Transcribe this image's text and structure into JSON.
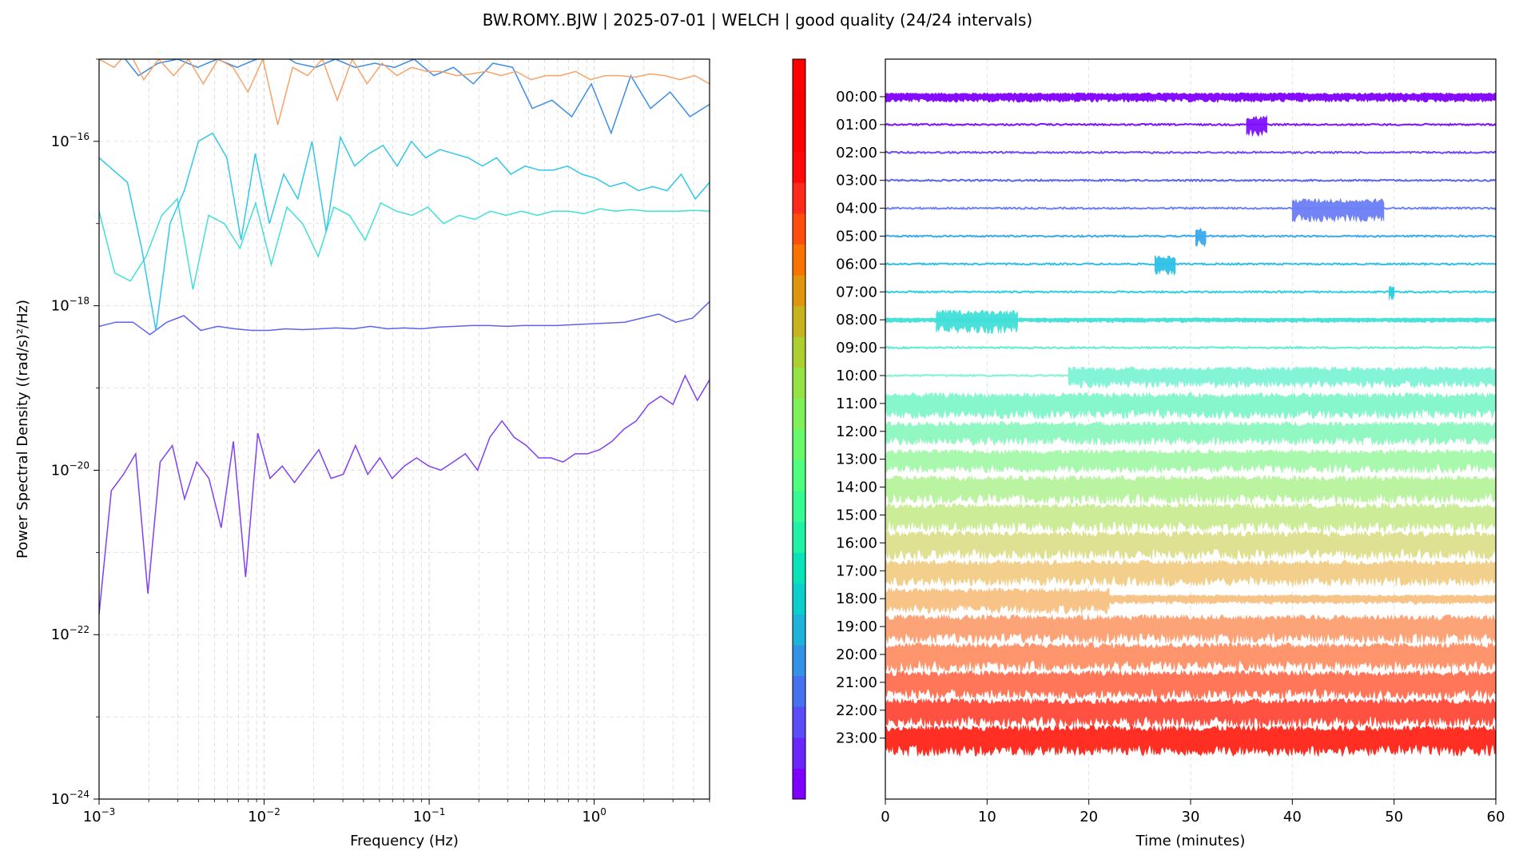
{
  "figure": {
    "title": "BW.ROMY..BJW | 2025-07-01 | WELCH | good quality (24/24 intervals)"
  },
  "chart_data": [
    {
      "type": "line",
      "panel": "psd",
      "xlabel": "Frequency (Hz)",
      "ylabel": "Power Spectral Density ((rad/s)²/Hz)",
      "xscale": "log",
      "yscale": "log",
      "xlim": [
        0.001,
        5
      ],
      "ylim": [
        1e-24,
        1e-15
      ],
      "grid": true,
      "x_ticks": [
        {
          "value": 0.001,
          "base": "10",
          "exp": "−3"
        },
        {
          "value": 0.01,
          "base": "10",
          "exp": "−2"
        },
        {
          "value": 0.1,
          "base": "10",
          "exp": "−1"
        },
        {
          "value": 1,
          "base": "10",
          "exp": "0"
        }
      ],
      "y_ticks": [
        {
          "value": 1e-16,
          "base": "10",
          "exp": "−16"
        },
        {
          "value": 1e-18,
          "base": "10",
          "exp": "−18"
        },
        {
          "value": 1e-20,
          "base": "10",
          "exp": "−20"
        },
        {
          "value": 1e-22,
          "base": "10",
          "exp": "−22"
        },
        {
          "value": 1e-24,
          "base": "10",
          "exp": "−24"
        }
      ],
      "series": [
        {
          "color": "#8040f5",
          "logy": [
            -21.75,
            -20.25,
            -20.05,
            -19.8,
            -21.5,
            -19.9,
            -19.7,
            -20.35,
            -19.9,
            -20.1,
            -20.7,
            -19.65,
            -21.3,
            -19.55,
            -20.1,
            -19.95,
            -20.15,
            -19.95,
            -19.75,
            -20.1,
            -20.05,
            -19.7,
            -20.05,
            -19.85,
            -20.1,
            -19.95,
            -19.85,
            -19.95,
            -20.0,
            -19.9,
            -19.8,
            -20.0,
            -19.6,
            -19.4,
            -19.6,
            -19.7,
            -19.85,
            -19.85,
            -19.9,
            -19.8,
            -19.8,
            -19.75,
            -19.65,
            -19.5,
            -19.4,
            -19.2,
            -19.1,
            -19.2,
            -18.85,
            -19.15,
            -18.9
          ]
        },
        {
          "color": "#5e62f0",
          "logy": [
            -18.25,
            -18.2,
            -18.2,
            -18.35,
            -18.2,
            -18.12,
            -18.3,
            -18.25,
            -18.28,
            -18.3,
            -18.3,
            -18.28,
            -18.29,
            -18.28,
            -18.27,
            -18.28,
            -18.25,
            -18.28,
            -18.27,
            -18.28,
            -18.26,
            -18.25,
            -18.24,
            -18.24,
            -18.25,
            -18.24,
            -18.24,
            -18.24,
            -18.23,
            -18.22,
            -18.21,
            -18.2,
            -18.15,
            -18.1,
            -18.2,
            -18.15,
            -17.95
          ]
        },
        {
          "color": "#40e0d8",
          "logy": [
            -16.85,
            -17.6,
            -17.7,
            -17.4,
            -16.9,
            -16.7,
            -17.8,
            -16.9,
            -17.0,
            -17.3,
            -16.75,
            -17.5,
            -16.8,
            -17.0,
            -17.4,
            -16.8,
            -16.9,
            -17.2,
            -16.75,
            -16.85,
            -16.9,
            -16.8,
            -17.0,
            -16.9,
            -16.95,
            -16.85,
            -16.9,
            -16.85,
            -16.9,
            -16.85,
            -16.85,
            -16.88,
            -16.82,
            -16.85,
            -16.83,
            -16.85,
            -16.85,
            -16.85,
            -16.84,
            -16.85
          ]
        },
        {
          "color": "#30c8e8",
          "logy": [
            -16.2,
            -16.35,
            -16.5,
            -17.3,
            -18.3,
            -17.0,
            -16.6,
            -16.0,
            -15.9,
            -16.2,
            -17.2,
            -16.15,
            -17.0,
            -16.4,
            -16.7,
            -16.0,
            -17.1,
            -15.95,
            -16.3,
            -16.15,
            -16.05,
            -16.3,
            -16.0,
            -16.2,
            -16.1,
            -16.15,
            -16.2,
            -16.3,
            -16.2,
            -16.4,
            -16.3,
            -16.35,
            -16.35,
            -16.3,
            -16.4,
            -16.45,
            -16.55,
            -16.5,
            -16.6,
            -16.55,
            -16.6,
            -16.4,
            -16.7,
            -16.5
          ]
        },
        {
          "color": "#3c8ee8",
          "logy": [
            -15.0,
            -14.9,
            -15.2,
            -15.05,
            -15.0,
            -15.1,
            -15.0,
            -15.1,
            -15.0,
            -14.9,
            -15.05,
            -15.1,
            -15.0,
            -15.1,
            -15.05,
            -15.1,
            -15.0,
            -15.2,
            -15.1,
            -15.3,
            -15.05,
            -15.1,
            -15.6,
            -15.5,
            -15.7,
            -15.3,
            -15.9,
            -15.2,
            -15.6,
            -15.4,
            -15.7,
            -15.55
          ]
        },
        {
          "color": "#f5a36a",
          "logy": [
            -15.0,
            -15.1,
            -14.9,
            -15.25,
            -15.0,
            -15.2,
            -15.0,
            -15.3,
            -15.0,
            -15.1,
            -15.4,
            -15.0,
            -15.8,
            -15.1,
            -15.2,
            -15.0,
            -15.5,
            -15.0,
            -15.3,
            -15.05,
            -15.2,
            -15.1,
            -15.15,
            -15.15,
            -15.2,
            -15.18,
            -15.15,
            -15.2,
            -15.15,
            -15.25,
            -15.2,
            -15.2,
            -15.15,
            -15.25,
            -15.2,
            -15.2,
            -15.22,
            -15.18,
            -15.2,
            -15.25,
            -15.2,
            -15.3
          ]
        }
      ]
    },
    {
      "type": "line",
      "panel": "timeseries",
      "xlabel": "Time (minutes)",
      "xlim": [
        0,
        60
      ],
      "x_ticks": [
        0,
        10,
        20,
        30,
        40,
        50,
        60
      ],
      "grid": true,
      "categories": [
        "00:00",
        "01:00",
        "02:00",
        "03:00",
        "04:00",
        "05:00",
        "06:00",
        "07:00",
        "08:00",
        "09:00",
        "10:00",
        "11:00",
        "12:00",
        "13:00",
        "14:00",
        "15:00",
        "16:00",
        "17:00",
        "18:00",
        "19:00",
        "20:00",
        "21:00",
        "22:00",
        "23:00"
      ],
      "series": [
        {
          "name": "00:00",
          "color": "#8000ff",
          "spread": 0.08,
          "segments": [
            [
              0,
              60,
              0.2
            ]
          ]
        },
        {
          "name": "01:00",
          "color": "#7f10fe",
          "spread": 0.05,
          "segments": [
            [
              0,
              60,
              0.05
            ],
            [
              35.5,
              37.5,
              0.45
            ]
          ]
        },
        {
          "name": "02:00",
          "color": "#6c48f7",
          "spread": 0.04,
          "segments": [
            [
              0,
              60,
              0.05
            ]
          ]
        },
        {
          "name": "03:00",
          "color": "#5a64f2",
          "spread": 0.04,
          "segments": [
            [
              0,
              60,
              0.05
            ]
          ]
        },
        {
          "name": "04:00",
          "color": "#6c7ff6",
          "spread": 0.05,
          "segments": [
            [
              0,
              60,
              0.05
            ],
            [
              40,
              49,
              0.5
            ]
          ]
        },
        {
          "name": "05:00",
          "color": "#3aaaec",
          "spread": 0.05,
          "segments": [
            [
              0,
              60,
              0.05
            ],
            [
              30.5,
              31.5,
              0.4
            ]
          ]
        },
        {
          "name": "06:00",
          "color": "#2ec0e8",
          "spread": 0.05,
          "segments": [
            [
              0,
              60,
              0.05
            ],
            [
              26.5,
              28.5,
              0.45
            ]
          ]
        },
        {
          "name": "07:00",
          "color": "#2ad0e0",
          "spread": 0.05,
          "segments": [
            [
              0,
              60,
              0.05
            ],
            [
              49.5,
              50,
              0.3
            ]
          ]
        },
        {
          "name": "08:00",
          "color": "#40e0d8",
          "spread": 0.1,
          "segments": [
            [
              0,
              60,
              0.1
            ],
            [
              5,
              13,
              0.5
            ]
          ]
        },
        {
          "name": "09:00",
          "color": "#60ecd8",
          "spread": 0.05,
          "segments": [
            [
              0,
              60,
              0.05
            ]
          ]
        },
        {
          "name": "10:00",
          "color": "#7ef4d4",
          "spread": 0.35,
          "segments": [
            [
              0,
              18,
              0.05
            ],
            [
              18,
              60,
              0.45
            ]
          ]
        },
        {
          "name": "11:00",
          "color": "#80f6ca",
          "spread": 0.4,
          "segments": [
            [
              0,
              60,
              0.55
            ]
          ]
        },
        {
          "name": "12:00",
          "color": "#8cf8be",
          "spread": 0.4,
          "segments": [
            [
              0,
              60,
              0.5
            ]
          ]
        },
        {
          "name": "13:00",
          "color": "#a4f8aa",
          "spread": 0.4,
          "segments": [
            [
              0,
              60,
              0.5
            ]
          ]
        },
        {
          "name": "14:00",
          "color": "#b8f49c",
          "spread": 0.5,
          "segments": [
            [
              0,
              60,
              0.6
            ]
          ]
        },
        {
          "name": "15:00",
          "color": "#caec92",
          "spread": 0.5,
          "segments": [
            [
              0,
              60,
              0.6
            ]
          ]
        },
        {
          "name": "16:00",
          "color": "#dce08c",
          "spread": 0.5,
          "segments": [
            [
              0,
              60,
              0.6
            ]
          ]
        },
        {
          "name": "17:00",
          "color": "#f2ce86",
          "spread": 0.45,
          "segments": [
            [
              0,
              60,
              0.55
            ]
          ]
        },
        {
          "name": "18:00",
          "color": "#f8c080",
          "spread": 0.45,
          "segments": [
            [
              0,
              22,
              0.55
            ],
            [
              22,
              60,
              0.2
            ]
          ]
        },
        {
          "name": "19:00",
          "color": "#fca070",
          "spread": 0.5,
          "segments": [
            [
              0,
              60,
              0.6
            ]
          ]
        },
        {
          "name": "20:00",
          "color": "#ff9066",
          "spread": 0.5,
          "segments": [
            [
              0,
              60,
              0.6
            ]
          ]
        },
        {
          "name": "21:00",
          "color": "#ff7050",
          "spread": 0.5,
          "segments": [
            [
              0,
              60,
              0.6
            ]
          ]
        },
        {
          "name": "22:00",
          "color": "#ff4838",
          "spread": 0.5,
          "segments": [
            [
              0,
              60,
              0.6
            ]
          ]
        },
        {
          "name": "23:00",
          "color": "#ff2418",
          "spread": 0.55,
          "segments": [
            [
              0,
              60,
              0.65
            ]
          ]
        }
      ]
    }
  ],
  "colorbar": {
    "colors": [
      "#8000ff",
      "#6c26fc",
      "#5a4cf7",
      "#4671f0",
      "#3293e6",
      "#1eb3da",
      "#0bcfcc",
      "#09e3b9",
      "#1ff2a6",
      "#35fb92",
      "#4dfe7f",
      "#66fa6a",
      "#7df157",
      "#94e243",
      "#acce31",
      "#c6b41f",
      "#df960d",
      "#f87302",
      "#ff4e0c",
      "#ff2a1a",
      "#ff0a0a",
      "#ff0000",
      "#f80000",
      "#ff0000"
    ]
  }
}
